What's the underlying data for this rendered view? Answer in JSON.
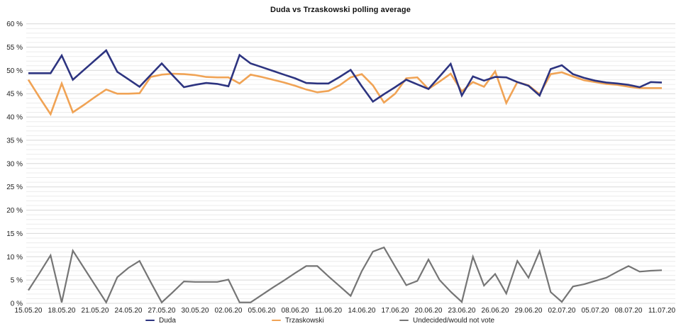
{
  "chart_data": {
    "type": "line",
    "title": "Duda vs Trzaskowski polling average",
    "xlabel": "",
    "ylabel": "",
    "ylim": [
      0,
      60
    ],
    "y_major_step": 5,
    "y_minor_step": 1,
    "grid": true,
    "legend_position": "bottom",
    "y_tick_labels": [
      "0 %",
      "5 %",
      "10 %",
      "15 %",
      "20 %",
      "25 %",
      "30 %",
      "35 %",
      "40 %",
      "45 %",
      "50 %",
      "55 %",
      "60 %"
    ],
    "x_tick_labels": [
      "15.05.20",
      "18.05.20",
      "21.05.20",
      "24.05.20",
      "27.05.20",
      "30.05.20",
      "02.06.20",
      "05.06.20",
      "08.06.20",
      "11.06.20",
      "14.06.20",
      "17.06.20",
      "20.06.20",
      "23.06.20",
      "26.06.20",
      "29.06.20",
      "02.07.20",
      "05.07.20",
      "08.07.20",
      "11.07.20"
    ],
    "x": [
      "15.05.20",
      "16.05.20",
      "17.05.20",
      "18.05.20",
      "19.05.20",
      "20.05.20",
      "21.05.20",
      "22.05.20",
      "23.05.20",
      "24.05.20",
      "25.05.20",
      "26.05.20",
      "27.05.20",
      "28.05.20",
      "29.05.20",
      "30.05.20",
      "31.05.20",
      "01.06.20",
      "02.06.20",
      "03.06.20",
      "04.06.20",
      "05.06.20",
      "06.06.20",
      "07.06.20",
      "08.06.20",
      "09.06.20",
      "10.06.20",
      "11.06.20",
      "12.06.20",
      "13.06.20",
      "14.06.20",
      "15.06.20",
      "16.06.20",
      "17.06.20",
      "18.06.20",
      "19.06.20",
      "20.06.20",
      "21.06.20",
      "22.06.20",
      "23.06.20",
      "24.06.20",
      "25.06.20",
      "26.06.20",
      "27.06.20",
      "28.06.20",
      "29.06.20",
      "30.06.20",
      "01.07.20",
      "02.07.20",
      "03.07.20",
      "04.07.20",
      "05.07.20",
      "06.07.20",
      "07.07.20",
      "08.07.20",
      "09.07.20",
      "10.07.20",
      "11.07.20"
    ],
    "series": [
      {
        "name": "Duda",
        "color": "#2d3480",
        "values": [
          49.4,
          49.4,
          49.4,
          53.2,
          48.0,
          50.1,
          52.2,
          54.3,
          49.7,
          48.1,
          46.5,
          49.0,
          51.5,
          48.9,
          46.4,
          46.9,
          47.3,
          47.1,
          46.6,
          53.3,
          51.5,
          50.7,
          49.9,
          49.1,
          48.3,
          47.3,
          47.2,
          47.2,
          48.6,
          50.1,
          46.6,
          43.3,
          44.9,
          46.4,
          48.0,
          47.0,
          46.0,
          48.7,
          51.4,
          44.6,
          48.7,
          47.8,
          48.6,
          48.5,
          47.5,
          46.7,
          44.6,
          50.3,
          51.1,
          49.2,
          48.4,
          47.8,
          47.4,
          47.2,
          46.9,
          46.4,
          47.5,
          47.4
        ]
      },
      {
        "name": "Trzaskowski",
        "color": "#f0a355",
        "values": [
          48.0,
          44.2,
          40.6,
          47.2,
          41.0,
          42.6,
          44.3,
          45.9,
          45.0,
          45.0,
          45.1,
          48.6,
          49.1,
          49.3,
          49.2,
          49.0,
          48.6,
          48.5,
          48.5,
          47.2,
          49.1,
          48.6,
          48.0,
          47.4,
          46.7,
          45.9,
          45.3,
          45.6,
          46.8,
          48.5,
          49.2,
          46.8,
          43.1,
          45.0,
          48.3,
          48.5,
          46.0,
          47.6,
          49.3,
          45.5,
          47.5,
          46.5,
          49.8,
          43.0,
          47.5,
          46.8,
          44.9,
          49.2,
          49.6,
          48.7,
          47.9,
          47.5,
          47.1,
          46.9,
          46.5,
          46.2,
          46.2,
          46.2
        ]
      },
      {
        "name": "Undecided/would not vote",
        "color": "#757575",
        "values": [
          2.8,
          6.5,
          10.3,
          0.2,
          11.3,
          7.6,
          3.9,
          0.2,
          5.6,
          7.6,
          9.1,
          4.6,
          0.2,
          2.4,
          4.7,
          4.6,
          4.6,
          4.6,
          5.1,
          0.2,
          0.2,
          1.8,
          3.4,
          4.9,
          6.5,
          8.0,
          8.0,
          5.8,
          3.7,
          1.6,
          6.9,
          11.1,
          12.0,
          7.9,
          3.9,
          4.8,
          9.4,
          5.0,
          2.5,
          0.3,
          10.0,
          3.8,
          6.3,
          2.1,
          9.1,
          5.5,
          11.2,
          2.4,
          0.3,
          3.6,
          4.1,
          4.8,
          5.5,
          6.8,
          8.0,
          6.8,
          7.0,
          7.1
        ]
      }
    ]
  },
  "legend": {
    "items": [
      {
        "label": "Duda",
        "color": "#2d3480"
      },
      {
        "label": "Trzaskowski",
        "color": "#f0a355"
      },
      {
        "label": "Undecided/would not vote",
        "color": "#757575"
      }
    ]
  },
  "colors": {
    "grid_minor": "#ececec",
    "grid_major": "#d8d8d8",
    "tick_label": "#1c1c1c",
    "title": "#111111"
  }
}
